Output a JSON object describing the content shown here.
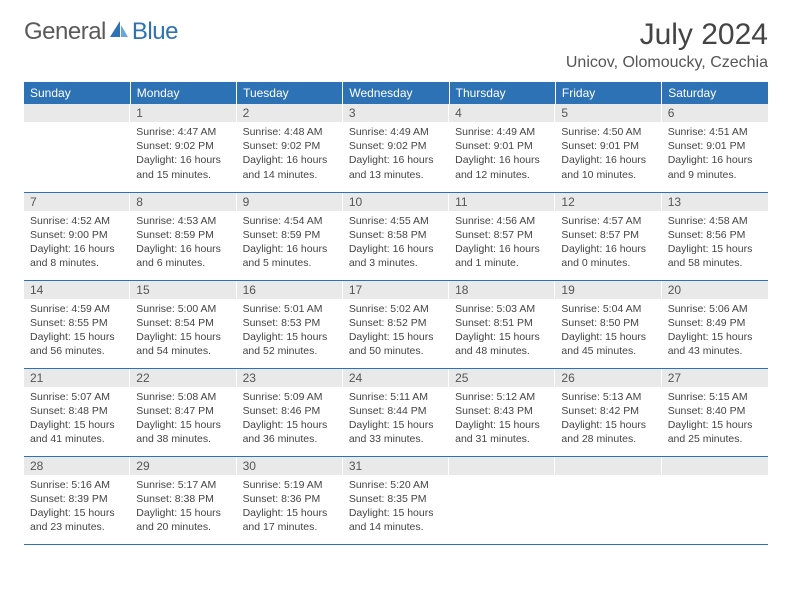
{
  "logo": {
    "text1": "General",
    "text2": "Blue"
  },
  "title": "July 2024",
  "location": "Unicov, Olomoucky, Czechia",
  "colors": {
    "header_bg": "#2d72b5",
    "header_text": "#ffffff",
    "daynum_bg": "#e9e9e9",
    "row_border": "#2d72b5",
    "body_text": "#444444",
    "title_text": "#444444",
    "logo_gray": "#5a5a5a",
    "logo_blue": "#2d72b5",
    "page_bg": "#ffffff"
  },
  "typography": {
    "title_fontsize": 30,
    "location_fontsize": 16,
    "header_fontsize": 12,
    "daynum_fontsize": 12,
    "content_fontsize": 10.5,
    "font_family": "Arial"
  },
  "layout": {
    "columns": 7,
    "rows": 5,
    "first_weekday_index": 1
  },
  "weekdays": [
    "Sunday",
    "Monday",
    "Tuesday",
    "Wednesday",
    "Thursday",
    "Friday",
    "Saturday"
  ],
  "days": [
    {
      "n": 1,
      "sunrise": "4:47 AM",
      "sunset": "9:02 PM",
      "daylight": "16 hours and 15 minutes."
    },
    {
      "n": 2,
      "sunrise": "4:48 AM",
      "sunset": "9:02 PM",
      "daylight": "16 hours and 14 minutes."
    },
    {
      "n": 3,
      "sunrise": "4:49 AM",
      "sunset": "9:02 PM",
      "daylight": "16 hours and 13 minutes."
    },
    {
      "n": 4,
      "sunrise": "4:49 AM",
      "sunset": "9:01 PM",
      "daylight": "16 hours and 12 minutes."
    },
    {
      "n": 5,
      "sunrise": "4:50 AM",
      "sunset": "9:01 PM",
      "daylight": "16 hours and 10 minutes."
    },
    {
      "n": 6,
      "sunrise": "4:51 AM",
      "sunset": "9:01 PM",
      "daylight": "16 hours and 9 minutes."
    },
    {
      "n": 7,
      "sunrise": "4:52 AM",
      "sunset": "9:00 PM",
      "daylight": "16 hours and 8 minutes."
    },
    {
      "n": 8,
      "sunrise": "4:53 AM",
      "sunset": "8:59 PM",
      "daylight": "16 hours and 6 minutes."
    },
    {
      "n": 9,
      "sunrise": "4:54 AM",
      "sunset": "8:59 PM",
      "daylight": "16 hours and 5 minutes."
    },
    {
      "n": 10,
      "sunrise": "4:55 AM",
      "sunset": "8:58 PM",
      "daylight": "16 hours and 3 minutes."
    },
    {
      "n": 11,
      "sunrise": "4:56 AM",
      "sunset": "8:57 PM",
      "daylight": "16 hours and 1 minute."
    },
    {
      "n": 12,
      "sunrise": "4:57 AM",
      "sunset": "8:57 PM",
      "daylight": "16 hours and 0 minutes."
    },
    {
      "n": 13,
      "sunrise": "4:58 AM",
      "sunset": "8:56 PM",
      "daylight": "15 hours and 58 minutes."
    },
    {
      "n": 14,
      "sunrise": "4:59 AM",
      "sunset": "8:55 PM",
      "daylight": "15 hours and 56 minutes."
    },
    {
      "n": 15,
      "sunrise": "5:00 AM",
      "sunset": "8:54 PM",
      "daylight": "15 hours and 54 minutes."
    },
    {
      "n": 16,
      "sunrise": "5:01 AM",
      "sunset": "8:53 PM",
      "daylight": "15 hours and 52 minutes."
    },
    {
      "n": 17,
      "sunrise": "5:02 AM",
      "sunset": "8:52 PM",
      "daylight": "15 hours and 50 minutes."
    },
    {
      "n": 18,
      "sunrise": "5:03 AM",
      "sunset": "8:51 PM",
      "daylight": "15 hours and 48 minutes."
    },
    {
      "n": 19,
      "sunrise": "5:04 AM",
      "sunset": "8:50 PM",
      "daylight": "15 hours and 45 minutes."
    },
    {
      "n": 20,
      "sunrise": "5:06 AM",
      "sunset": "8:49 PM",
      "daylight": "15 hours and 43 minutes."
    },
    {
      "n": 21,
      "sunrise": "5:07 AM",
      "sunset": "8:48 PM",
      "daylight": "15 hours and 41 minutes."
    },
    {
      "n": 22,
      "sunrise": "5:08 AM",
      "sunset": "8:47 PM",
      "daylight": "15 hours and 38 minutes."
    },
    {
      "n": 23,
      "sunrise": "5:09 AM",
      "sunset": "8:46 PM",
      "daylight": "15 hours and 36 minutes."
    },
    {
      "n": 24,
      "sunrise": "5:11 AM",
      "sunset": "8:44 PM",
      "daylight": "15 hours and 33 minutes."
    },
    {
      "n": 25,
      "sunrise": "5:12 AM",
      "sunset": "8:43 PM",
      "daylight": "15 hours and 31 minutes."
    },
    {
      "n": 26,
      "sunrise": "5:13 AM",
      "sunset": "8:42 PM",
      "daylight": "15 hours and 28 minutes."
    },
    {
      "n": 27,
      "sunrise": "5:15 AM",
      "sunset": "8:40 PM",
      "daylight": "15 hours and 25 minutes."
    },
    {
      "n": 28,
      "sunrise": "5:16 AM",
      "sunset": "8:39 PM",
      "daylight": "15 hours and 23 minutes."
    },
    {
      "n": 29,
      "sunrise": "5:17 AM",
      "sunset": "8:38 PM",
      "daylight": "15 hours and 20 minutes."
    },
    {
      "n": 30,
      "sunrise": "5:19 AM",
      "sunset": "8:36 PM",
      "daylight": "15 hours and 17 minutes."
    },
    {
      "n": 31,
      "sunrise": "5:20 AM",
      "sunset": "8:35 PM",
      "daylight": "15 hours and 14 minutes."
    }
  ],
  "labels": {
    "sunrise": "Sunrise:",
    "sunset": "Sunset:",
    "daylight": "Daylight:"
  }
}
